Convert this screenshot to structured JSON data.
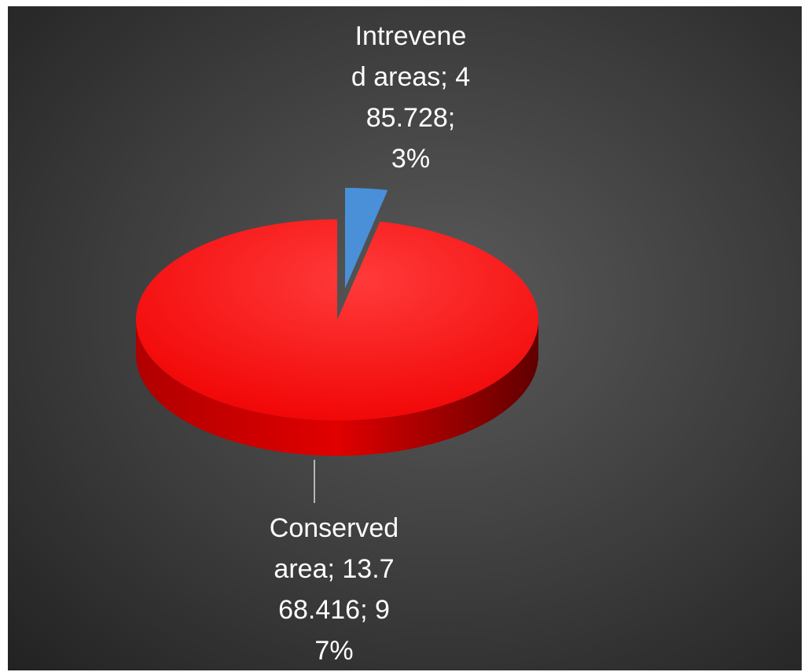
{
  "chart_data": {
    "type": "pie",
    "categories": [
      "Intrevened areas",
      "Conserved area"
    ],
    "values": [
      485728,
      13768416
    ],
    "value_labels": [
      "485.728",
      "13.768.416"
    ],
    "percents": [
      3,
      97
    ],
    "percent_labels": [
      "3%",
      "97%"
    ],
    "separator": ";",
    "colors": [
      "#4a90d9",
      "#ff1a1a"
    ],
    "exploded": [
      true,
      false
    ]
  }
}
